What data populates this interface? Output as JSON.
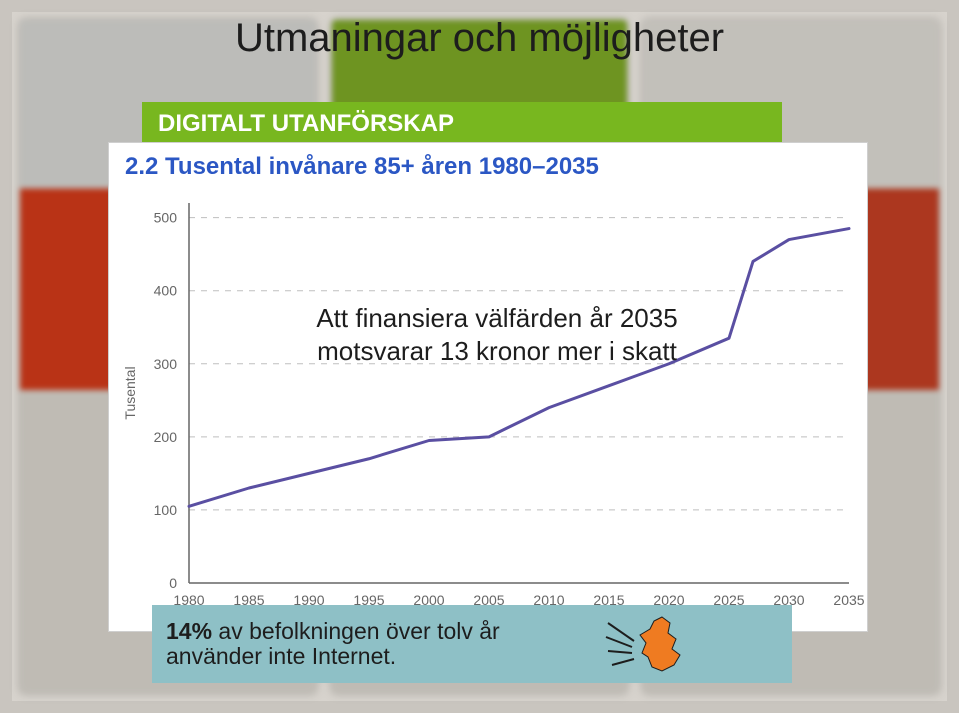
{
  "slide": {
    "title": "Utmaningar och möjligheter",
    "title_color": "#1d1d1d",
    "title_fontweight": 400,
    "background_border_color": "#c9c5bf",
    "bg_columns": [
      {
        "top": "#d6d6d2",
        "mid": "#d23a19"
      },
      {
        "top": "#7da826",
        "mid": "#f2f2f2"
      },
      {
        "top": "#dddad3",
        "mid": "#c33f23"
      }
    ]
  },
  "green_banner": {
    "bg": "#78b71f",
    "text_color": "#ffffff",
    "text": "DIGITALT UTANFÖRSKAP",
    "fontsize": 24
  },
  "chart": {
    "panel_bg": "#ffffff",
    "title": "2.2 Tusental invånare 85+ åren 1980–2035",
    "title_color": "#2b57c4",
    "title_fontsize": 24,
    "title_fontweight": 700,
    "type": "line",
    "ylabel": "Tusental",
    "yticks": [
      0,
      100,
      200,
      300,
      400,
      500
    ],
    "xticks": [
      1980,
      1985,
      1990,
      1995,
      2000,
      2005,
      2010,
      2015,
      2020,
      2025,
      2030,
      2035
    ],
    "xlim": [
      1980,
      2035
    ],
    "ylim": [
      0,
      520
    ],
    "values": [
      [
        1980,
        105
      ],
      [
        1985,
        130
      ],
      [
        1990,
        150
      ],
      [
        1995,
        170
      ],
      [
        2000,
        195
      ],
      [
        2005,
        200
      ],
      [
        2010,
        240
      ],
      [
        2015,
        270
      ],
      [
        2020,
        300
      ],
      [
        2025,
        335
      ],
      [
        2027,
        440
      ],
      [
        2030,
        470
      ],
      [
        2035,
        485
      ]
    ],
    "line_color": "#5a4fa2",
    "line_width": 3,
    "axis_color": "#666666",
    "grid_color": "#bfbfbf",
    "grid_dash": "6 6",
    "tick_label_color": "#666666",
    "tick_label_fontsize": 14
  },
  "overlay": {
    "text": "Att finansiera välfärden år 2035 motsvarar 13 kronor mer i skatt",
    "color": "#1d1d1d",
    "fontsize": 26
  },
  "footer": {
    "bg": "#8ec0c6",
    "text_color": "#1d1d1d",
    "pct": "14%",
    "pct_fontweight": 700,
    "line1_tail": " av befolkningen över tolv år",
    "line2": "använder inte Internet.",
    "map_fill": "#ef7b21",
    "map_stroke": "#1d1d1d"
  }
}
